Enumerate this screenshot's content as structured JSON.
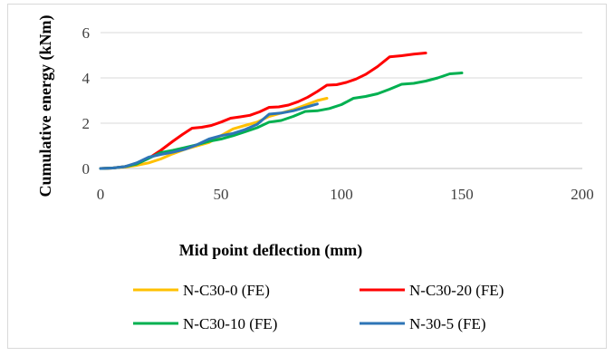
{
  "chart_data": {
    "type": "line",
    "title": "",
    "xlabel": "Mid point deflection (mm)",
    "ylabel": "Cumulative energy (kNm)",
    "xlim": [
      0,
      200
    ],
    "ylim": [
      0,
      6
    ],
    "xticks": [
      "0",
      "50",
      "100",
      "150",
      "200"
    ],
    "yticks": [
      "0",
      "2",
      "4",
      "6"
    ],
    "grid": "horizontal",
    "legend": "bottom",
    "series": [
      {
        "name": "N-C30-0 (FE)",
        "color": "#ffc000",
        "x": [
          0,
          5,
          10,
          15,
          20,
          25,
          30,
          35,
          40,
          45,
          50,
          55,
          60,
          65,
          70,
          75,
          80,
          85,
          90,
          94
        ],
        "y": [
          0,
          0.02,
          0.06,
          0.14,
          0.25,
          0.42,
          0.65,
          0.85,
          1.0,
          1.15,
          1.45,
          1.75,
          1.9,
          2.05,
          2.3,
          2.45,
          2.6,
          2.8,
          3.0,
          3.1
        ]
      },
      {
        "name": "N-C30-20 (FE)",
        "color": "#ff0000",
        "x": [
          0,
          5,
          10,
          15,
          20,
          25,
          30,
          34,
          38,
          42,
          46,
          50,
          54,
          58,
          62,
          66,
          70,
          74,
          78,
          82,
          86,
          90,
          94,
          98,
          102,
          106,
          110,
          115,
          120,
          125,
          130,
          135
        ],
        "y": [
          0,
          0.02,
          0.08,
          0.2,
          0.45,
          0.8,
          1.2,
          1.5,
          1.78,
          1.82,
          1.9,
          2.05,
          2.22,
          2.28,
          2.35,
          2.5,
          2.7,
          2.72,
          2.8,
          2.95,
          3.15,
          3.4,
          3.68,
          3.7,
          3.8,
          3.95,
          4.15,
          4.5,
          4.93,
          4.98,
          5.05,
          5.1
        ]
      },
      {
        "name": "N-C30-10 (FE)",
        "color": "#00b050",
        "x": [
          0,
          5,
          10,
          15,
          20,
          25,
          30,
          35,
          40,
          45,
          50,
          55,
          60,
          65,
          70,
          75,
          80,
          85,
          90,
          95,
          100,
          105,
          110,
          115,
          120,
          125,
          130,
          135,
          140,
          145,
          150
        ],
        "y": [
          0,
          0.02,
          0.08,
          0.2,
          0.45,
          0.7,
          0.8,
          0.92,
          1.05,
          1.2,
          1.3,
          1.45,
          1.62,
          1.8,
          2.05,
          2.12,
          2.3,
          2.52,
          2.55,
          2.65,
          2.82,
          3.1,
          3.18,
          3.3,
          3.5,
          3.72,
          3.76,
          3.86,
          4.0,
          4.18,
          4.22
        ]
      },
      {
        "name": "N-30-5 (FE)",
        "color": "#2e75b6",
        "x": [
          0,
          5,
          10,
          15,
          20,
          25,
          30,
          35,
          40,
          45,
          50,
          55,
          60,
          65,
          70,
          75,
          80,
          85,
          90
        ],
        "y": [
          0,
          0.02,
          0.08,
          0.25,
          0.5,
          0.62,
          0.72,
          0.85,
          1.05,
          1.3,
          1.45,
          1.55,
          1.72,
          1.95,
          2.4,
          2.45,
          2.55,
          2.7,
          2.85
        ]
      }
    ]
  }
}
